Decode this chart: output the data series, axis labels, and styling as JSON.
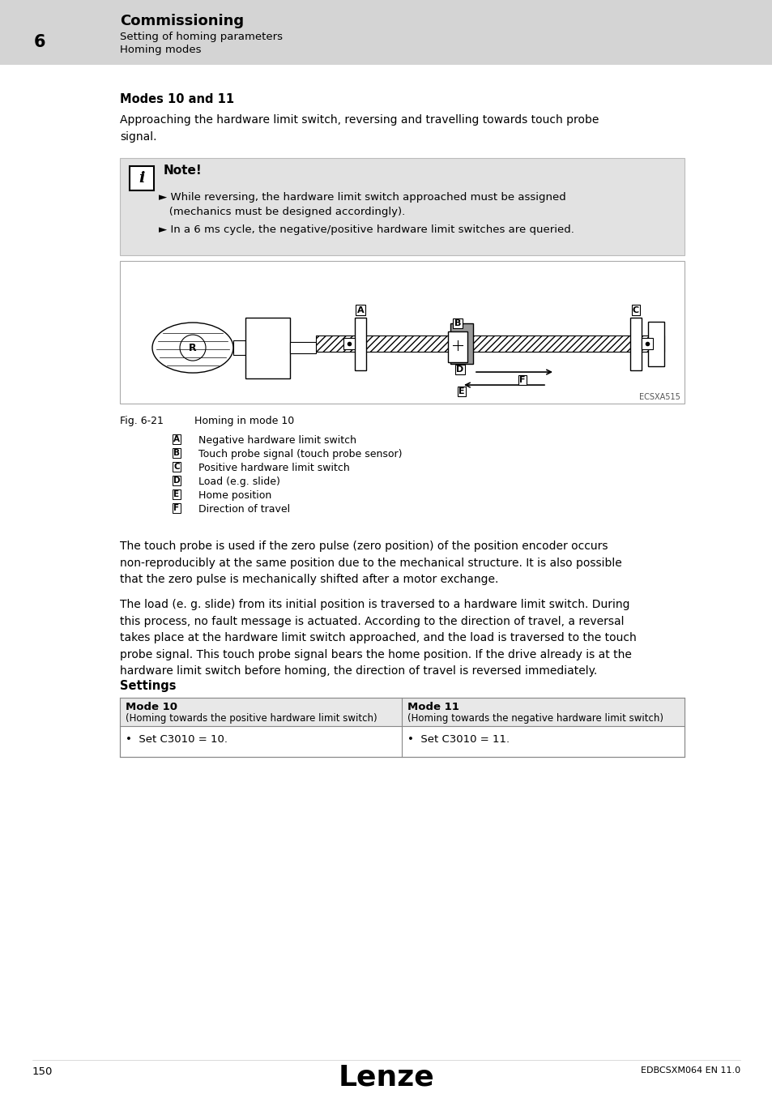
{
  "page_bg": "#ffffff",
  "header_bg": "#d4d4d4",
  "header_number": "6",
  "header_title": "Commissioning",
  "header_sub1": "Setting of homing parameters",
  "header_sub2": "Homing modes",
  "section_title": "Modes 10 and 11",
  "section_body1": "Approaching the hardware limit switch, reversing and travelling towards touch probe\nsignal.",
  "note_bg": "#e2e2e2",
  "note_title": "Note!",
  "note_bullet1": "► While reversing, the hardware limit switch approached must be assigned\n   (mechanics must be designed accordingly).",
  "note_bullet2": "► In a 6 ms cycle, the negative/positive hardware limit switches are queried.",
  "fig_label": "Fig. 6-21",
  "fig_caption": "Homing in mode 10",
  "legend_A": "Negative hardware limit switch",
  "legend_B": "Touch probe signal (touch probe sensor)",
  "legend_C": "Positive hardware limit switch",
  "legend_D": "Load (e.g. slide)",
  "legend_E": "Home position",
  "legend_F": "Direction of travel",
  "fig_ref": "ECSXA515",
  "para1": "The touch probe is used if the zero pulse (zero position) of the position encoder occurs\nnon-reproducibly at the same position due to the mechanical structure. It is also possible\nthat the zero pulse is mechanically shifted after a motor exchange.",
  "para2": "The load (e. g. slide) from its initial position is traversed to a hardware limit switch. During\nthis process, no fault message is actuated. According to the direction of travel, a reversal\ntakes place at the hardware limit switch approached, and the load is traversed to the touch\nprobe signal. This touch probe signal bears the home position. If the drive already is at the\nhardware limit switch before homing, the direction of travel is reversed immediately.",
  "settings_title": "Settings",
  "table_col1_header": "Mode 10",
  "table_col1_sub": "(Homing towards the positive hardware limit switch)",
  "table_col2_header": "Mode 11",
  "table_col2_sub": "(Homing towards the negative hardware limit switch)",
  "table_row1_col1": "•  Set C3010 = 10.",
  "table_row1_col2": "•  Set C3010 = 11.",
  "footer_page": "150",
  "footer_logo": "Lenze",
  "footer_ref": "EDBCSXM064 EN 11.0"
}
